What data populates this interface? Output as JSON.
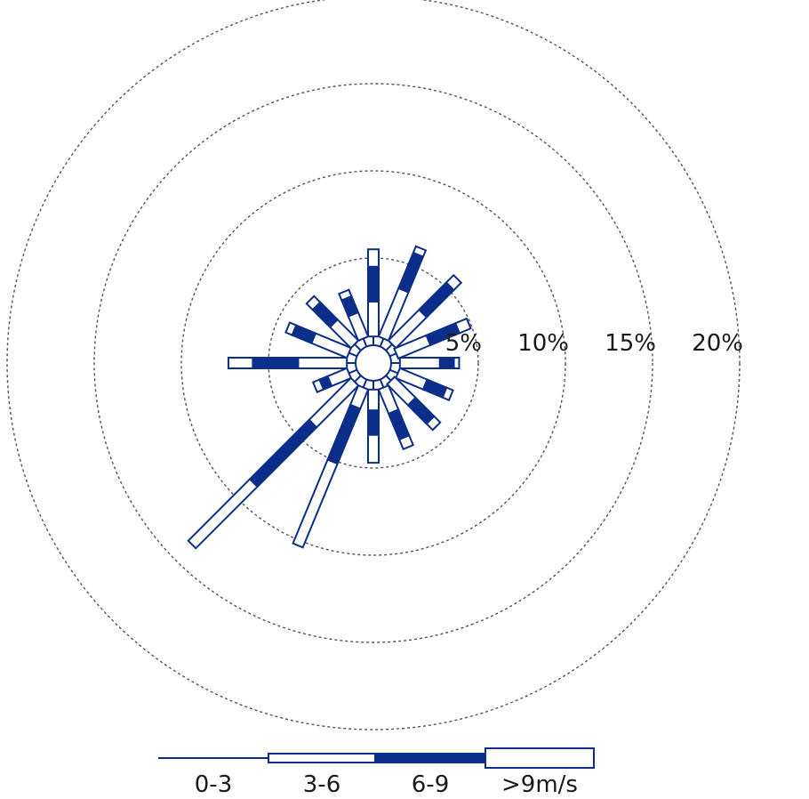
{
  "chart_data": {
    "type": "wind-rose",
    "ring_values": [
      5,
      10,
      15,
      20
    ],
    "ring_labels": [
      "5%",
      "10%",
      "15%",
      "20%"
    ],
    "colors": {
      "bar_stroke": "#0b2e8a",
      "bar_fill_solid": "#0b2e8a",
      "bar_fill_hollow": "#ffffff",
      "ring": "#555555"
    },
    "bins": [
      "0-3",
      "3-6",
      "6-9",
      ">9m/s"
    ],
    "directions": [
      {
        "dir": "N",
        "angle": 0,
        "values": [
          0.5,
          2.0,
          2.0,
          1.0
        ]
      },
      {
        "dir": "NNE",
        "angle": 22.5,
        "values": [
          0.5,
          3.0,
          2.2,
          0.4
        ]
      },
      {
        "dir": "NE",
        "angle": 45,
        "values": [
          0.5,
          2.5,
          2.2,
          0.6
        ]
      },
      {
        "dir": "ENE",
        "angle": 67.5,
        "values": [
          0.4,
          2.0,
          1.8,
          0.7
        ]
      },
      {
        "dir": "E",
        "angle": 90,
        "values": [
          0.5,
          2.3,
          0.8,
          0.3
        ]
      },
      {
        "dir": "ESE",
        "angle": 112.5,
        "values": [
          0.5,
          1.7,
          1.2,
          0.4
        ]
      },
      {
        "dir": "SE",
        "angle": 135,
        "values": [
          0.4,
          1.7,
          1.5,
          0.5
        ]
      },
      {
        "dir": "SSE",
        "angle": 157.5,
        "values": [
          0.5,
          1.5,
          1.6,
          0.6
        ]
      },
      {
        "dir": "S",
        "angle": 180,
        "values": [
          0.5,
          1.2,
          1.4,
          1.6
        ]
      },
      {
        "dir": "SSW",
        "angle": 202.5,
        "values": [
          0.5,
          1.2,
          3.4,
          5.2
        ]
      },
      {
        "dir": "SW",
        "angle": 225,
        "values": [
          0.5,
          3.4,
          4.8,
          5.0
        ]
      },
      {
        "dir": "WSW",
        "angle": 247.5,
        "values": [
          0.5,
          1.2,
          0.5,
          0.4
        ]
      },
      {
        "dir": "W",
        "angle": 270,
        "values": [
          0.5,
          2.8,
          2.6,
          1.4
        ]
      },
      {
        "dir": "WNW",
        "angle": 292.5,
        "values": [
          0.5,
          2.2,
          1.2,
          0.4
        ]
      },
      {
        "dir": "NW",
        "angle": 315,
        "values": [
          0.5,
          1.7,
          1.4,
          0.5
        ]
      },
      {
        "dir": "NNW",
        "angle": 337.5,
        "values": [
          0.5,
          1.5,
          1.0,
          0.4
        ]
      }
    ]
  }
}
